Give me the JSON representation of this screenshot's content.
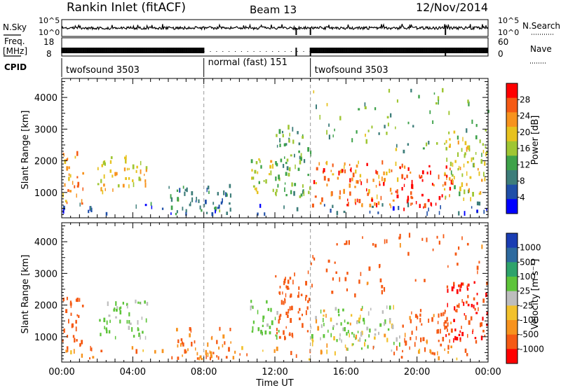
{
  "header": {
    "title": "Rankin Inlet (fitACF)",
    "beam": "Beam 13",
    "date": "12/Nov/2014"
  },
  "labels": {
    "nsky": "N.Sky",
    "nsearch": "N.Search",
    "freq": "Freq.",
    "mhz": "[MHz]",
    "cpid": "CPID",
    "nave": "Nave"
  },
  "colors": {
    "power_scale": [
      "#0000ff",
      "#1f4fa8",
      "#3d7d7a",
      "#3ea24a",
      "#9fc633",
      "#e7c21f",
      "#f7931e",
      "#f55a14",
      "#ff0000"
    ],
    "velocity_scale": [
      "#ff0000",
      "#f55a14",
      "#f7931e",
      "#f2c12c",
      "#bdbdbd",
      "#5ec43a",
      "#2ea36b",
      "#2d6a9e",
      "#1a3db3"
    ]
  },
  "chart_data": [
    {
      "panel": "nsky-nsearch",
      "type": "line",
      "left_ticks": [
        "10^5",
        "10^0"
      ],
      "right_ticks": [
        "10^5",
        "10^0"
      ],
      "series": [
        {
          "name": "N.Sky",
          "style": "solid"
        },
        {
          "name": "N.Search",
          "style": "dotted"
        }
      ],
      "approx_level": "near 10^2 throughout",
      "drops_to_10^0_at_hours": [
        13.2,
        14.0,
        21.6
      ]
    },
    {
      "panel": "freq-nave",
      "type": "bar",
      "left_ticks": [
        "18",
        "8"
      ],
      "right_ticks": [
        "60",
        "0"
      ],
      "series": [
        {
          "name": "Freq.",
          "style": "solid"
        },
        {
          "name": "Nave",
          "style": "dotted"
        }
      ],
      "gap_hours": [
        [
          8.0,
          14.0
        ]
      ]
    },
    {
      "panel": "cpid",
      "type": "table",
      "segments": [
        {
          "label": "twofsound 3503",
          "start_h": 0,
          "end_h": 8
        },
        {
          "label": "normal (fast) 151",
          "start_h": 8,
          "end_h": 14
        },
        {
          "label": "twofsound 3503",
          "start_h": 14,
          "end_h": 24
        }
      ]
    },
    {
      "panel": "power",
      "type": "heatmap",
      "ylabel": "Slant Range [km]",
      "yticks": [
        1000,
        2000,
        3000,
        4000
      ],
      "ylim": [
        200,
        4600
      ],
      "colorbar_label": "Power [dB]",
      "colorbar_ticks": [
        4,
        8,
        12,
        16,
        20,
        24,
        28
      ],
      "colorbar_range": [
        0,
        32
      ],
      "scatter_regions": [
        {
          "t0": 0.0,
          "t1": 1.2,
          "r0": 600,
          "r1": 2300,
          "level": 23
        },
        {
          "t0": 2.0,
          "t1": 4.8,
          "r0": 900,
          "r1": 2100,
          "level": 20
        },
        {
          "t0": 6.0,
          "t1": 9.5,
          "r0": 250,
          "r1": 1200,
          "level": 10
        },
        {
          "t0": 10.6,
          "t1": 12.3,
          "r0": 900,
          "r1": 2100,
          "level": 17
        },
        {
          "t0": 12.0,
          "t1": 14.0,
          "r0": 800,
          "r1": 3000,
          "level": 12
        },
        {
          "t0": 14.0,
          "t1": 19.0,
          "r0": 500,
          "r1": 1900,
          "level": 25
        },
        {
          "t0": 19.0,
          "t1": 22.0,
          "r0": 400,
          "r1": 1800,
          "level": 29
        },
        {
          "t0": 21.5,
          "t1": 24.0,
          "r0": 700,
          "r1": 2700,
          "level": 18
        },
        {
          "t0": 0.0,
          "t1": 24.0,
          "r0": 250,
          "r1": 600,
          "level": 6
        },
        {
          "t0": 14.0,
          "t1": 24.0,
          "r0": 2200,
          "r1": 4200,
          "level": 14
        }
      ]
    },
    {
      "panel": "velocity",
      "type": "heatmap",
      "ylabel": "Slant Range [km]",
      "yticks": [
        1000,
        2000,
        3000,
        4000
      ],
      "ylim": [
        200,
        4600
      ],
      "colorbar_label": "Velocity [m s⁻¹]",
      "colorbar_ticks": [
        1000,
        500,
        100,
        25,
        -25,
        -100,
        -500,
        -1000
      ],
      "xticks": [
        "00:00",
        "04:00",
        "08:00",
        "12:00",
        "16:00",
        "20:00",
        "00:00"
      ],
      "xlabel": "Time UT",
      "scatter_regions": [
        {
          "t0": 0.0,
          "t1": 1.2,
          "r0": 600,
          "r1": 2300,
          "level": -300
        },
        {
          "t0": 2.0,
          "t1": 4.8,
          "r0": 900,
          "r1": 2100,
          "level": 150
        },
        {
          "t0": 6.0,
          "t1": 9.5,
          "r0": 250,
          "r1": 1200,
          "level": -120
        },
        {
          "t0": 10.6,
          "t1": 12.3,
          "r0": 900,
          "r1": 2100,
          "level": 200
        },
        {
          "t0": 12.0,
          "t1": 14.0,
          "r0": 800,
          "r1": 3000,
          "level": -300
        },
        {
          "t0": 14.0,
          "t1": 19.0,
          "r0": 500,
          "r1": 1900,
          "level": 60
        },
        {
          "t0": 19.0,
          "t1": 22.0,
          "r0": 400,
          "r1": 1800,
          "level": -150
        },
        {
          "t0": 21.5,
          "t1": 24.0,
          "r0": 700,
          "r1": 2700,
          "level": -600
        },
        {
          "t0": 0.0,
          "t1": 24.0,
          "r0": 250,
          "r1": 600,
          "level": -80
        },
        {
          "t0": 14.0,
          "t1": 24.0,
          "r0": 2200,
          "r1": 4200,
          "level": -200
        }
      ]
    }
  ]
}
